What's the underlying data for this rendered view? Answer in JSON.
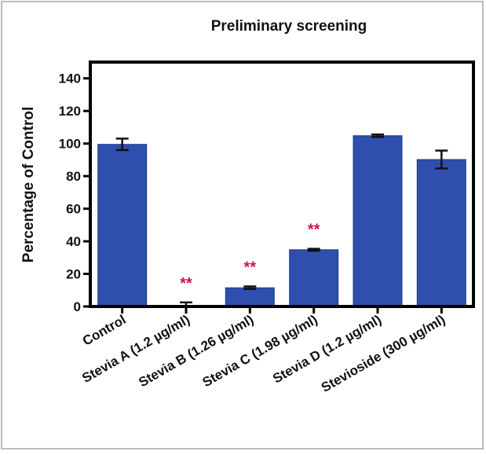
{
  "chart_data": {
    "type": "bar",
    "title": "Preliminary screening",
    "xlabel": "",
    "ylabel": "Percentage of Control",
    "ylim": [
      0,
      150
    ],
    "yticks": [
      0,
      20,
      40,
      60,
      80,
      100,
      120,
      140
    ],
    "categories": [
      "Control",
      "Stevia A (1.2 µg/ml)",
      "Stevia B (1.26 µg/ml)",
      "Stevia C (1.98 µg/ml)",
      "Stevia D (1.2 µg/ml)",
      "Stevioside (300 µg/ml)"
    ],
    "values": [
      99.5,
      0.5,
      11.5,
      34.8,
      104.8,
      90.2
    ],
    "errors": [
      3.5,
      2,
      0.8,
      0.6,
      0.8,
      5.5
    ],
    "significance": [
      "",
      "**",
      "**",
      "**",
      "",
      ""
    ],
    "grid": false,
    "colors": {
      "bar": "#2f4fae",
      "bar_edge": "#1f3a8a",
      "error": "#111111",
      "significance": "#c8174a",
      "frame": "#000000"
    }
  }
}
